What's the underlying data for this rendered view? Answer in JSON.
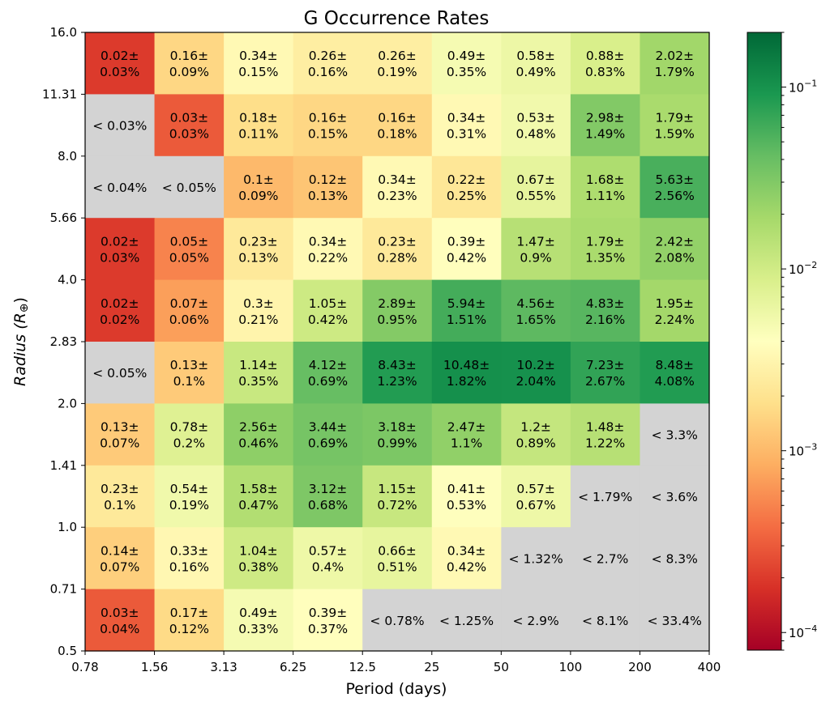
{
  "chart_data": {
    "type": "heatmap",
    "title": "G Occurrence Rates",
    "xlabel": "Period (days)",
    "ylabel": "Radius (R",
    "ylabel_symbol": "⊕",
    "ylabel_close": ")",
    "x_edges": [
      "0.78",
      "1.56",
      "3.13",
      "6.25",
      "12.5",
      "25",
      "50",
      "100",
      "200",
      "400"
    ],
    "y_edges": [
      "0.5",
      "0.71",
      "1.0",
      "1.41",
      "2.0",
      "2.83",
      "4.0",
      "5.66",
      "8.0",
      "11.31",
      "16.0"
    ],
    "colorbar": {
      "scale": "log",
      "range": [
        8e-05,
        0.2
      ],
      "tick_labels": [
        {
          "value": 0.0001,
          "base": "10",
          "exp": "−4"
        },
        {
          "value": 0.001,
          "base": "10",
          "exp": "−3"
        },
        {
          "value": 0.01,
          "base": "10",
          "exp": "−2"
        },
        {
          "value": 0.1,
          "base": "10",
          "exp": "−1"
        }
      ]
    },
    "upper_limit_color": "#d3d3d3",
    "rows": [
      {
        "radius_range": "11.31–16.0",
        "cells": [
          {
            "rate": 0.0002,
            "line1": "0.02±",
            "line2": "0.03%"
          },
          {
            "rate": 0.0016,
            "line1": "0.16±",
            "line2": "0.09%"
          },
          {
            "rate": 0.0034,
            "line1": "0.34±",
            "line2": "0.15%"
          },
          {
            "rate": 0.0026,
            "line1": "0.26±",
            "line2": "0.16%"
          },
          {
            "rate": 0.0026,
            "line1": "0.26±",
            "line2": "0.19%"
          },
          {
            "rate": 0.0049,
            "line1": "0.49±",
            "line2": "0.35%"
          },
          {
            "rate": 0.0058,
            "line1": "0.58±",
            "line2": "0.49%"
          },
          {
            "rate": 0.0088,
            "line1": "0.88±",
            "line2": "0.83%"
          },
          {
            "rate": 0.0202,
            "line1": "2.02±",
            "line2": "1.79%"
          }
        ]
      },
      {
        "radius_range": "8.0–11.31",
        "cells": [
          {
            "rate": null,
            "line1": "< 0.03%",
            "line2": ""
          },
          {
            "rate": 0.0003,
            "line1": "0.03±",
            "line2": "0.03%"
          },
          {
            "rate": 0.0018,
            "line1": "0.18±",
            "line2": "0.11%"
          },
          {
            "rate": 0.0016,
            "line1": "0.16±",
            "line2": "0.15%"
          },
          {
            "rate": 0.0016,
            "line1": "0.16±",
            "line2": "0.18%"
          },
          {
            "rate": 0.0034,
            "line1": "0.34±",
            "line2": "0.31%"
          },
          {
            "rate": 0.0053,
            "line1": "0.53±",
            "line2": "0.48%"
          },
          {
            "rate": 0.0298,
            "line1": "2.98±",
            "line2": "1.49%"
          },
          {
            "rate": 0.0179,
            "line1": "1.79±",
            "line2": "1.59%"
          }
        ]
      },
      {
        "radius_range": "5.66–8.0",
        "cells": [
          {
            "rate": null,
            "line1": "< 0.04%",
            "line2": ""
          },
          {
            "rate": null,
            "line1": "< 0.05%",
            "line2": ""
          },
          {
            "rate": 0.001,
            "line1": "0.1±",
            "line2": "0.09%"
          },
          {
            "rate": 0.0012,
            "line1": "0.12±",
            "line2": "0.13%"
          },
          {
            "rate": 0.0034,
            "line1": "0.34±",
            "line2": "0.23%"
          },
          {
            "rate": 0.0022,
            "line1": "0.22±",
            "line2": "0.25%"
          },
          {
            "rate": 0.0067,
            "line1": "0.67±",
            "line2": "0.55%"
          },
          {
            "rate": 0.0168,
            "line1": "1.68±",
            "line2": "1.11%"
          },
          {
            "rate": 0.0563,
            "line1": "5.63±",
            "line2": "2.56%"
          }
        ]
      },
      {
        "radius_range": "4.0–5.66",
        "cells": [
          {
            "rate": 0.0002,
            "line1": "0.02±",
            "line2": "0.03%"
          },
          {
            "rate": 0.0005,
            "line1": "0.05±",
            "line2": "0.05%"
          },
          {
            "rate": 0.0023,
            "line1": "0.23±",
            "line2": "0.13%"
          },
          {
            "rate": 0.0034,
            "line1": "0.34±",
            "line2": "0.22%"
          },
          {
            "rate": 0.0023,
            "line1": "0.23±",
            "line2": "0.28%"
          },
          {
            "rate": 0.0039,
            "line1": "0.39±",
            "line2": "0.42%"
          },
          {
            "rate": 0.0147,
            "line1": "1.47±",
            "line2": "0.9%"
          },
          {
            "rate": 0.0179,
            "line1": "1.79±",
            "line2": "1.35%"
          },
          {
            "rate": 0.0242,
            "line1": "2.42±",
            "line2": "2.08%"
          }
        ]
      },
      {
        "radius_range": "2.83–4.0",
        "cells": [
          {
            "rate": 0.0002,
            "line1": "0.02±",
            "line2": "0.02%"
          },
          {
            "rate": 0.0007,
            "line1": "0.07±",
            "line2": "0.06%"
          },
          {
            "rate": 0.003,
            "line1": "0.3±",
            "line2": "0.21%"
          },
          {
            "rate": 0.0105,
            "line1": "1.05±",
            "line2": "0.42%"
          },
          {
            "rate": 0.0289,
            "line1": "2.89±",
            "line2": "0.95%"
          },
          {
            "rate": 0.0594,
            "line1": "5.94±",
            "line2": "1.51%"
          },
          {
            "rate": 0.0456,
            "line1": "4.56±",
            "line2": "1.65%"
          },
          {
            "rate": 0.0483,
            "line1": "4.83±",
            "line2": "2.16%"
          },
          {
            "rate": 0.0195,
            "line1": "1.95±",
            "line2": "2.24%"
          }
        ]
      },
      {
        "radius_range": "2.0–2.83",
        "cells": [
          {
            "rate": null,
            "line1": "< 0.05%",
            "line2": ""
          },
          {
            "rate": 0.0013,
            "line1": "0.13±",
            "line2": "0.1%"
          },
          {
            "rate": 0.0114,
            "line1": "1.14±",
            "line2": "0.35%"
          },
          {
            "rate": 0.0412,
            "line1": "4.12±",
            "line2": "0.69%"
          },
          {
            "rate": 0.0843,
            "line1": "8.43±",
            "line2": "1.23%"
          },
          {
            "rate": 0.1048,
            "line1": "10.48±",
            "line2": "1.82%"
          },
          {
            "rate": 0.102,
            "line1": "10.2±",
            "line2": "2.04%"
          },
          {
            "rate": 0.0723,
            "line1": "7.23±",
            "line2": "2.67%"
          },
          {
            "rate": 0.0848,
            "line1": "8.48±",
            "line2": "4.08%"
          }
        ]
      },
      {
        "radius_range": "1.41–2.0",
        "cells": [
          {
            "rate": 0.0013,
            "line1": "0.13±",
            "line2": "0.07%"
          },
          {
            "rate": 0.0078,
            "line1": "0.78±",
            "line2": "0.2%"
          },
          {
            "rate": 0.0256,
            "line1": "2.56±",
            "line2": "0.46%"
          },
          {
            "rate": 0.0344,
            "line1": "3.44±",
            "line2": "0.69%"
          },
          {
            "rate": 0.0318,
            "line1": "3.18±",
            "line2": "0.99%"
          },
          {
            "rate": 0.0247,
            "line1": "2.47±",
            "line2": "1.1%"
          },
          {
            "rate": 0.012,
            "line1": "1.2±",
            "line2": "0.89%"
          },
          {
            "rate": 0.0148,
            "line1": "1.48±",
            "line2": "1.22%"
          },
          {
            "rate": null,
            "line1": "< 3.3%",
            "line2": ""
          }
        ]
      },
      {
        "radius_range": "1.0–1.41",
        "cells": [
          {
            "rate": 0.0023,
            "line1": "0.23±",
            "line2": "0.1%"
          },
          {
            "rate": 0.0054,
            "line1": "0.54±",
            "line2": "0.19%"
          },
          {
            "rate": 0.0158,
            "line1": "1.58±",
            "line2": "0.47%"
          },
          {
            "rate": 0.0312,
            "line1": "3.12±",
            "line2": "0.68%"
          },
          {
            "rate": 0.0115,
            "line1": "1.15±",
            "line2": "0.72%"
          },
          {
            "rate": 0.0041,
            "line1": "0.41±",
            "line2": "0.53%"
          },
          {
            "rate": 0.0057,
            "line1": "0.57±",
            "line2": "0.67%"
          },
          {
            "rate": null,
            "line1": "< 1.79%",
            "line2": ""
          },
          {
            "rate": null,
            "line1": "< 3.6%",
            "line2": ""
          }
        ]
      },
      {
        "radius_range": "0.71–1.0",
        "cells": [
          {
            "rate": 0.0014,
            "line1": "0.14±",
            "line2": "0.07%"
          },
          {
            "rate": 0.0033,
            "line1": "0.33±",
            "line2": "0.16%"
          },
          {
            "rate": 0.0104,
            "line1": "1.04±",
            "line2": "0.38%"
          },
          {
            "rate": 0.0057,
            "line1": "0.57±",
            "line2": "0.4%"
          },
          {
            "rate": 0.0066,
            "line1": "0.66±",
            "line2": "0.51%"
          },
          {
            "rate": 0.0034,
            "line1": "0.34±",
            "line2": "0.42%"
          },
          {
            "rate": null,
            "line1": "< 1.32%",
            "line2": ""
          },
          {
            "rate": null,
            "line1": "< 2.7%",
            "line2": ""
          },
          {
            "rate": null,
            "line1": "< 8.3%",
            "line2": ""
          }
        ]
      },
      {
        "radius_range": "0.5–0.71",
        "cells": [
          {
            "rate": 0.0003,
            "line1": "0.03±",
            "line2": "0.04%"
          },
          {
            "rate": 0.0017,
            "line1": "0.17±",
            "line2": "0.12%"
          },
          {
            "rate": 0.0049,
            "line1": "0.49±",
            "line2": "0.33%"
          },
          {
            "rate": 0.0039,
            "line1": "0.39±",
            "line2": "0.37%"
          },
          {
            "rate": null,
            "line1": "< 0.78%",
            "line2": ""
          },
          {
            "rate": null,
            "line1": "< 1.25%",
            "line2": ""
          },
          {
            "rate": null,
            "line1": "< 2.9%",
            "line2": ""
          },
          {
            "rate": null,
            "line1": "< 8.1%",
            "line2": ""
          },
          {
            "rate": null,
            "line1": "< 33.4%",
            "line2": ""
          }
        ]
      }
    ]
  }
}
